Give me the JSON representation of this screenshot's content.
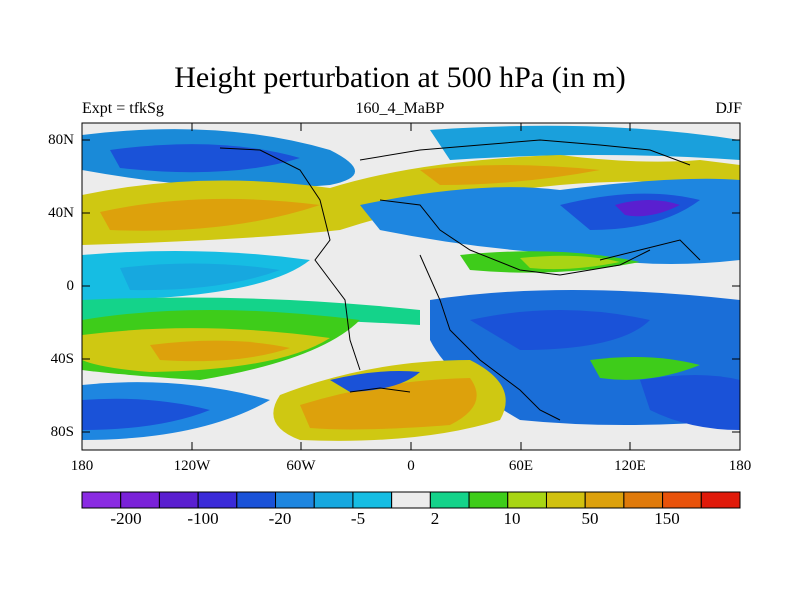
{
  "title": "Height perturbation at 500 hPa (in m)",
  "left_string": "Expt = tfkSg",
  "center_string": "160_4_MaBP",
  "right_string": "DJF",
  "y_axis": {
    "labels": [
      "80N",
      "40N",
      "0",
      "40S",
      "80S"
    ]
  },
  "x_axis": {
    "labels": [
      "180",
      "120W",
      "60W",
      "0",
      "60E",
      "120E",
      "180"
    ]
  },
  "colorbar": {
    "colors": [
      "#8a2be2",
      "#7a22d8",
      "#5a1fd0",
      "#3a2ad8",
      "#1a52d8",
      "#1e86e0",
      "#17a8df",
      "#16bde3",
      "#ececec",
      "#14d38a",
      "#3ecc1a",
      "#a8d514",
      "#d1c10f",
      "#dda10c",
      "#e07a0a",
      "#e8520a",
      "#e01a0a"
    ],
    "labels": [
      "-200",
      "-100",
      "-20",
      "-5",
      "2",
      "10",
      "50",
      "150"
    ]
  },
  "map_field": {
    "type": "filled-contour",
    "variable": "500 hPa height perturbation",
    "units": "m"
  }
}
